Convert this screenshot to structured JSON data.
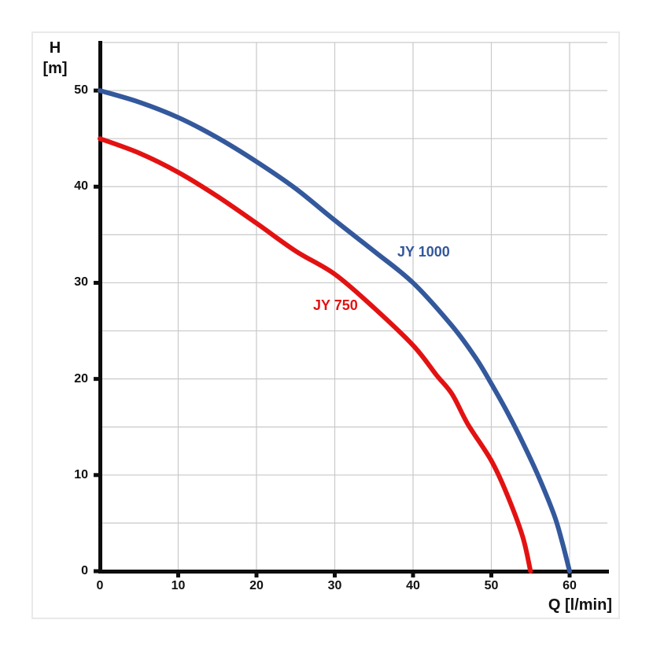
{
  "chart_data": {
    "type": "line",
    "title": "",
    "xlabel": "Q [l/min]",
    "ylabel_line1": "H",
    "ylabel_line2": "[m]",
    "xlim": [
      0,
      65
    ],
    "ylim": [
      0,
      55
    ],
    "x_ticks": [
      "0",
      "10",
      "20",
      "30",
      "40",
      "50",
      "60"
    ],
    "x_tick_values": [
      0,
      10,
      20,
      30,
      40,
      50,
      60
    ],
    "y_ticks": [
      "0",
      "10",
      "20",
      "30",
      "40",
      "50"
    ],
    "y_tick_values": [
      0,
      10,
      20,
      30,
      40,
      50
    ],
    "x_grid_step": 10,
    "y_grid_step": 5,
    "grid": true,
    "legend_position": "inline-labels",
    "series": [
      {
        "name": "JY 1000",
        "color": "#33589C",
        "points": [
          [
            0,
            50
          ],
          [
            5,
            48.8
          ],
          [
            10,
            47.2
          ],
          [
            15,
            45.1
          ],
          [
            20,
            42.6
          ],
          [
            25,
            39.8
          ],
          [
            30,
            36.5
          ],
          [
            35,
            33.3
          ],
          [
            40,
            30
          ],
          [
            45,
            25.5
          ],
          [
            48,
            22.2
          ],
          [
            50,
            19.5
          ],
          [
            52,
            16.6
          ],
          [
            54,
            13.4
          ],
          [
            56,
            9.9
          ],
          [
            58,
            5.9
          ],
          [
            59,
            3.2
          ],
          [
            60,
            0
          ]
        ]
      },
      {
        "name": "JY 750",
        "color": "#E31212",
        "points": [
          [
            0,
            45
          ],
          [
            5,
            43.5
          ],
          [
            10,
            41.5
          ],
          [
            15,
            39
          ],
          [
            20,
            36.2
          ],
          [
            25,
            33.3
          ],
          [
            30,
            30.9
          ],
          [
            35,
            27.4
          ],
          [
            40,
            23.5
          ],
          [
            43,
            20.4
          ],
          [
            45,
            18.4
          ],
          [
            47,
            15.3
          ],
          [
            50,
            11.5
          ],
          [
            52,
            8
          ],
          [
            54,
            3.6
          ],
          [
            55,
            0
          ]
        ]
      }
    ]
  },
  "colors": {
    "axis": "#0d0d0d",
    "grid": "#c9c9c9",
    "frame_border": "#e9e9e9",
    "background": "#ffffff"
  }
}
